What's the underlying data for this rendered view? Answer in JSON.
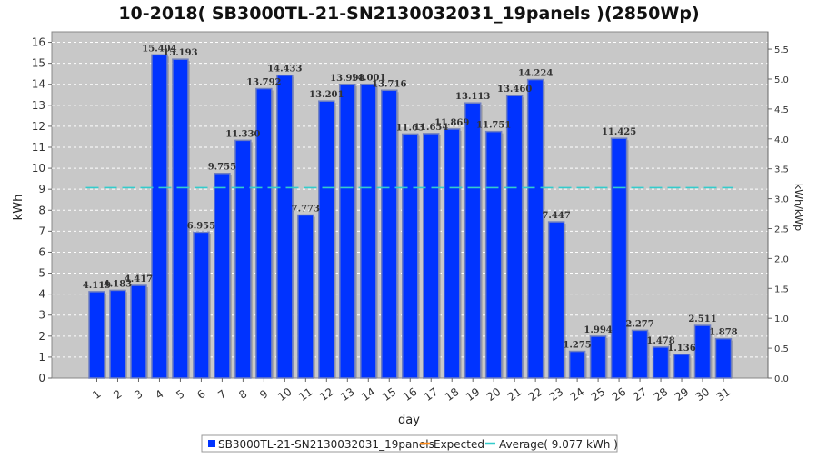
{
  "chart_data": {
    "type": "bar",
    "title": "10-2018( SB3000TL-21-SN2130032031_19panels )(2850Wp)",
    "xlabel": "day",
    "ylabel": "kWh",
    "ylabel_right": "kWh/kWp",
    "ylim": [
      0,
      16.5
    ],
    "yticks": [
      0,
      1,
      2,
      3,
      4,
      5,
      6,
      7,
      8,
      9,
      10,
      11,
      12,
      13,
      14,
      15,
      16
    ],
    "ylim_right": [
      0,
      5.79
    ],
    "yticks_right": [
      "0.0",
      "0.5",
      "1.0",
      "1.5",
      "2.0",
      "2.5",
      "3.0",
      "3.5",
      "4.0",
      "4.5",
      "5.0",
      "5.5"
    ],
    "grid": true,
    "legend_placement": "bottom",
    "categories": [
      "1",
      "2",
      "3",
      "4",
      "5",
      "6",
      "7",
      "8",
      "9",
      "10",
      "11",
      "12",
      "13",
      "14",
      "15",
      "16",
      "17",
      "18",
      "19",
      "20",
      "21",
      "22",
      "23",
      "24",
      "25",
      "26",
      "27",
      "28",
      "29",
      "30",
      "31"
    ],
    "series": [
      {
        "name": "SB3000TL-21-SN2130032031_19panels",
        "color": "#0033ff",
        "values": [
          4.119,
          4.183,
          4.417,
          15.404,
          15.193,
          6.955,
          9.755,
          11.33,
          13.792,
          14.433,
          7.773,
          13.201,
          13.998,
          14.001,
          13.716,
          11.631,
          11.654,
          11.869,
          13.113,
          11.751,
          13.46,
          14.224,
          7.447,
          1.275,
          1.994,
          11.425,
          2.277,
          1.478,
          1.136,
          2.511,
          1.878
        ],
        "labels": [
          "4.119",
          "4.183",
          "4.417",
          "15.404",
          "15.193",
          "6.955",
          "9.755",
          "11.330",
          "13.792",
          "14.433",
          "7.773",
          "13.201",
          "13.998",
          "14.001",
          "13.716",
          "11.631",
          "11.654",
          "11.869",
          "13.113",
          "11.751",
          "13.460",
          "14.224",
          "7.447",
          "1.275",
          "1.994",
          "11.425",
          "2.277",
          "1.478",
          "1.136",
          "2.511",
          "1.878"
        ],
        "label_display": [
          "4.119",
          "4.183",
          "4.417",
          "15.404",
          "15.193",
          "6.955",
          "9.755",
          "11.330",
          "13.792",
          "14.433",
          "7.773",
          "13.201",
          "13.998",
          "14.001",
          "13.716",
          "11.63",
          "11.654",
          "11.869",
          "13.113",
          "11.751",
          "13.460",
          "14.224",
          "7.447",
          "1.275",
          "1.994",
          "11.425",
          "2.277",
          "1.478",
          "1.136",
          "2.511",
          "1.878"
        ]
      }
    ],
    "average": {
      "name": "Average( 9.077 kWh )",
      "value": 9.077,
      "color": "#33cccc"
    },
    "expected": {
      "name": "Expected",
      "color": "#ff8c1a"
    },
    "colors": {
      "plot_bg": "#c8c8c8",
      "grid": "#ffffff",
      "bar_edge": "#6f7fbf"
    }
  }
}
